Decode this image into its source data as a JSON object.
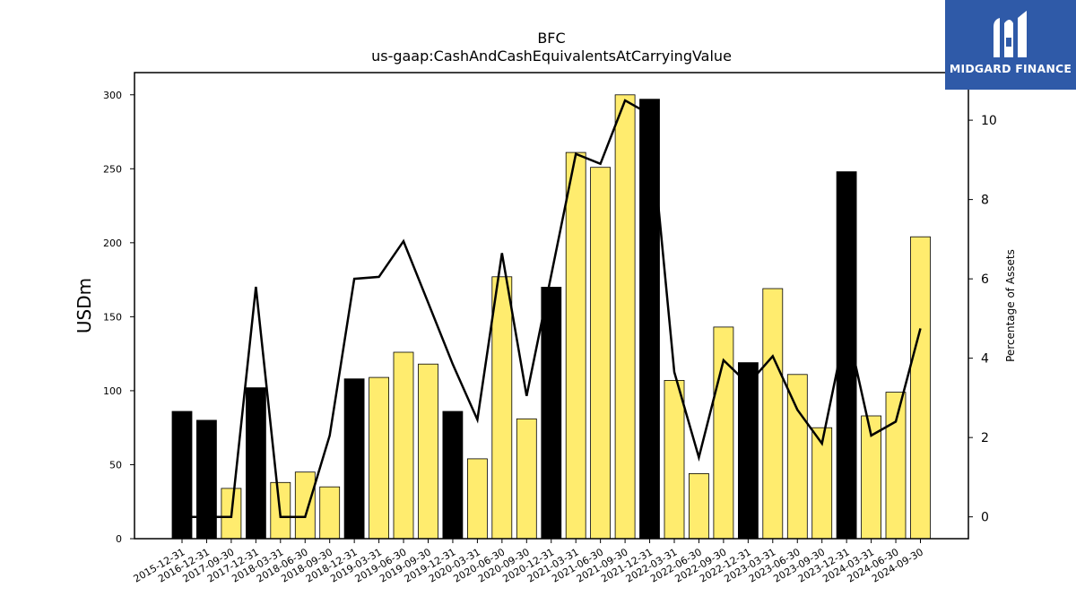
{
  "chart_data": {
    "type": "bar",
    "title": "BFC",
    "subtitle": "us-gaap:CashAndCashEquivalentsAtCarryingValue",
    "ylabel": "USDm",
    "y2label": "Percentage of Assets",
    "ylim": [
      0,
      315
    ],
    "y2lim": [
      -0.55,
      11.2
    ],
    "yticks": [
      0,
      50,
      100,
      150,
      200,
      250,
      300
    ],
    "y2ticks": [
      0,
      2,
      4,
      6,
      8,
      10
    ],
    "grid": false,
    "categories": [
      "2015-12-31",
      "2016-12-31",
      "2017-09-30",
      "2017-12-31",
      "2018-03-31",
      "2018-06-30",
      "2018-09-30",
      "2018-12-31",
      "2019-03-31",
      "2019-06-30",
      "2019-09-30",
      "2019-12-31",
      "2020-03-31",
      "2020-06-30",
      "2020-09-30",
      "2020-12-31",
      "2021-03-31",
      "2021-06-30",
      "2021-09-30",
      "2021-12-31",
      "2022-03-31",
      "2022-06-30",
      "2022-09-30",
      "2022-12-31",
      "2023-03-31",
      "2023-06-30",
      "2023-09-30",
      "2023-12-31",
      "2024-03-31",
      "2024-06-30",
      "2024-09-30"
    ],
    "series": [
      {
        "type": "bar",
        "values": [
          86,
          80,
          34,
          102,
          38,
          45,
          35,
          108,
          109,
          126,
          118,
          86,
          54,
          177,
          81,
          170,
          261,
          251,
          300,
          297,
          107,
          44,
          143,
          119,
          169,
          111,
          75,
          248,
          83,
          99,
          204
        ],
        "is_year_end": [
          true,
          true,
          false,
          true,
          false,
          false,
          false,
          true,
          false,
          false,
          false,
          true,
          false,
          false,
          false,
          true,
          false,
          false,
          false,
          true,
          false,
          false,
          false,
          true,
          false,
          false,
          false,
          true,
          false,
          false,
          false
        ],
        "color_year_end": "#000000",
        "color_quarter": "#ffec6e"
      },
      {
        "type": "line",
        "axis": "right",
        "color": "#000000",
        "values": [
          0,
          0,
          0,
          5.8,
          0,
          0,
          2.05,
          6.0,
          6.05,
          6.95,
          5.4,
          3.85,
          2.45,
          6.65,
          3.05,
          6.1,
          9.15,
          8.9,
          10.5,
          10.15,
          3.65,
          1.5,
          3.95,
          3.35,
          4.05,
          2.7,
          1.85,
          4.85,
          2.05,
          2.4,
          4.75
        ]
      }
    ]
  },
  "logo": {
    "text": "MIDGARD FINANCE",
    "bg_color": "#2f5aa8"
  }
}
